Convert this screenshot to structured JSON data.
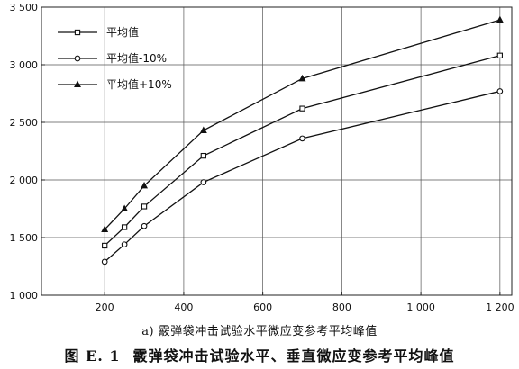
{
  "chart_data": {
    "type": "line",
    "x": [
      200,
      250,
      300,
      450,
      700,
      1200
    ],
    "xticks": [
      200,
      400,
      600,
      800,
      1000,
      1200
    ],
    "xtick_labels": [
      "200",
      "400",
      "600",
      "800",
      "1 000",
      "1 200"
    ],
    "xlim": [
      40,
      1230
    ],
    "yticks": [
      1000,
      1500,
      2000,
      2500,
      3000,
      3500
    ],
    "ytick_labels": [
      "1 000",
      "1 500",
      "2 000",
      "2 500",
      "3 000",
      "3 500"
    ],
    "ylim": [
      1000,
      3500
    ],
    "grid": true,
    "legend_position": "top-left",
    "series": [
      {
        "name": "平均值",
        "marker": "square",
        "values": [
          1430,
          1590,
          1770,
          2210,
          2620,
          3080
        ]
      },
      {
        "name": "平均值-10%",
        "marker": "circle",
        "values": [
          1290,
          1440,
          1600,
          1980,
          2360,
          2770
        ]
      },
      {
        "name": "平均值+10%",
        "marker": "triangle",
        "values": [
          1570,
          1750,
          1950,
          2430,
          2880,
          3390
        ]
      }
    ]
  },
  "captions": {
    "sub": "a) 霰弹袋冲击试验水平微应变参考平均峰值",
    "fig_no": "图 E. 1",
    "title": "霰弹袋冲击试验水平、垂直微应变参考平均峰值"
  }
}
